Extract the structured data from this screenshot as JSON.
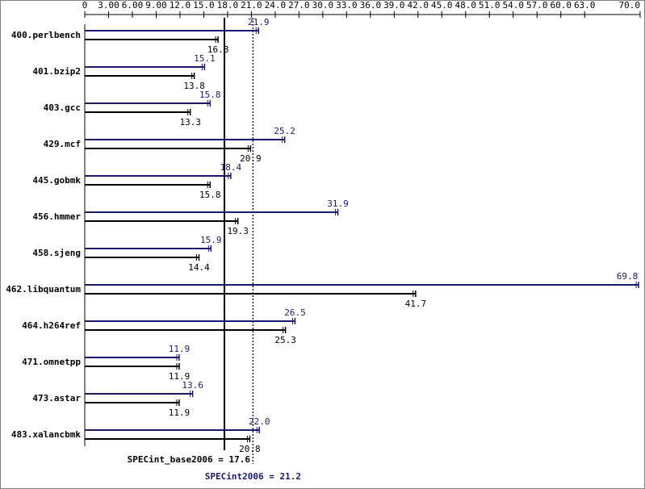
{
  "chart_data": {
    "type": "bar",
    "orientation": "horizontal",
    "categories": [
      "400.perlbench",
      "401.bzip2",
      "403.gcc",
      "429.mcf",
      "445.gobmk",
      "456.hmmer",
      "458.sjeng",
      "462.libquantum",
      "464.h264ref",
      "471.omnetpp",
      "473.astar",
      "483.xalancbmk"
    ],
    "series": [
      {
        "color": "#191970",
        "values": [
          21.9,
          15.1,
          15.8,
          25.2,
          18.4,
          31.9,
          15.9,
          69.8,
          26.5,
          11.9,
          13.6,
          22.0
        ],
        "value_labels": [
          "21.9",
          "15.1",
          "15.8",
          "25.2",
          "18.4",
          "31.9",
          "15.9",
          "69.8",
          "26.5",
          "11.9",
          "13.6",
          "22.0"
        ]
      },
      {
        "color": "#000000",
        "values": [
          16.8,
          13.8,
          13.3,
          20.9,
          15.8,
          19.3,
          14.4,
          41.7,
          25.3,
          11.9,
          11.9,
          20.8
        ]
      }
    ],
    "xlim": [
      0,
      70
    ],
    "xticks": [
      0,
      {
        "value": 3,
        "label": "3.00"
      },
      {
        "value": 6,
        "label": "6.00"
      },
      {
        "value": 9,
        "label": "9.00"
      },
      {
        "value": 12,
        "label": "12.0"
      },
      {
        "value": 15,
        "label": "15.0"
      },
      {
        "value": 18,
        "label": "18.0"
      },
      {
        "value": 21,
        "label": "21.0"
      },
      {
        "value": 24,
        "label": "24.0"
      },
      {
        "value": 27,
        "label": "27.0"
      },
      {
        "value": 30,
        "label": "30.0"
      },
      {
        "value": 33,
        "label": "33.0"
      },
      {
        "value": 36,
        "label": "36.0"
      },
      {
        "value": 39,
        "label": "39.0"
      },
      {
        "value": 42,
        "label": "42.0"
      },
      {
        "value": 45,
        "label": "45.0"
      },
      {
        "value": 48,
        "label": "48.0"
      },
      {
        "value": 51,
        "label": "51.0"
      },
      {
        "value": 54,
        "label": "54.0"
      },
      {
        "value": 57,
        "label": "57.0"
      },
      {
        "value": 60,
        "label": "60.0"
      },
      {
        "value": 63,
        "label": "63.0"
      },
      {
        "value": 70,
        "label": "70.0"
      }
    ],
    "reference_lines": [
      {
        "label": "SPECint_base2006 = 17.6",
        "value": 17.6,
        "color": "#000000",
        "style": "solid"
      },
      {
        "label": "SPECint2006 = 21.2",
        "value": 21.2,
        "color": "#191970",
        "style": "dotted"
      }
    ]
  }
}
